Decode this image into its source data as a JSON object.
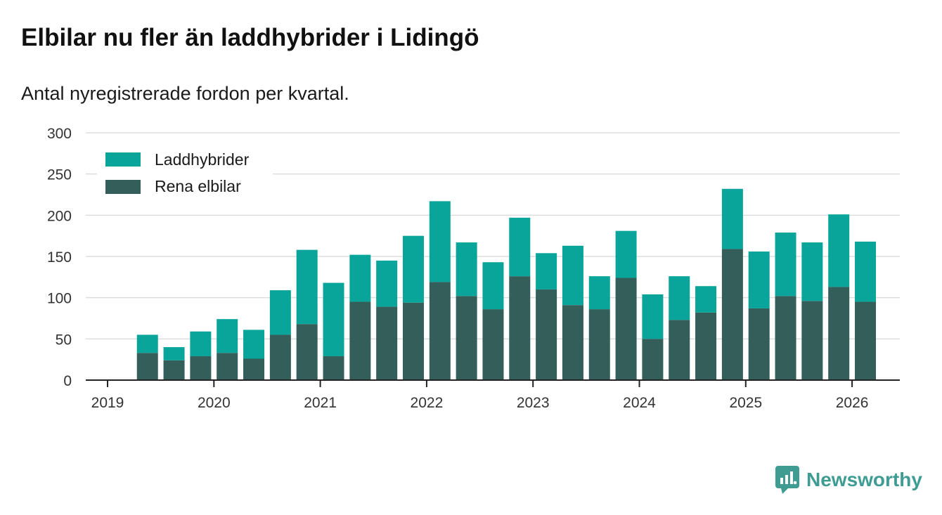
{
  "title": "Elbilar nu fler än laddhybrider i Lidingö",
  "subtitle": "Antal nyregistrerade fordon per kvartal.",
  "brand": {
    "name": "Newsworthy"
  },
  "colors": {
    "hybrid": "#0aa59a",
    "electric": "#335e5a",
    "grid": "#dddddd",
    "axis": "#222222",
    "brand": "#3f9c93"
  },
  "chart_data": {
    "type": "bar",
    "stacked": true,
    "title": "Elbilar nu fler än laddhybrider i Lidingö",
    "subtitle": "Antal nyregistrerade fordon per kvartal.",
    "xlabel": "",
    "ylabel": "",
    "ylim": [
      0,
      300
    ],
    "yticks": [
      0,
      50,
      100,
      150,
      200,
      250,
      300
    ],
    "xticks": [
      "2019",
      "2020",
      "2021",
      "2022",
      "2023",
      "2024",
      "2025",
      "2026"
    ],
    "legend_position": "top-left",
    "grid": true,
    "categories": [
      "2019 Q2",
      "2019 Q3",
      "2019 Q4",
      "2020 Q1",
      "2020 Q2",
      "2020 Q3",
      "2020 Q4",
      "2021 Q1",
      "2021 Q2",
      "2021 Q3",
      "2021 Q4",
      "2022 Q1",
      "2022 Q2",
      "2022 Q3",
      "2022 Q4",
      "2023 Q1",
      "2023 Q2",
      "2023 Q3",
      "2023 Q4",
      "2024 Q1",
      "2024 Q2",
      "2024 Q3",
      "2024 Q4",
      "2025 Q1",
      "2025 Q2",
      "2025 Q3",
      "2025 Q4",
      "2026 Q1"
    ],
    "series": [
      {
        "name": "Rena elbilar",
        "values": [
          33,
          24,
          29,
          33,
          26,
          55,
          68,
          29,
          95,
          89,
          94,
          119,
          102,
          86,
          126,
          110,
          91,
          86,
          124,
          50,
          73,
          82,
          159,
          87,
          102,
          96,
          113,
          95
        ]
      },
      {
        "name": "Laddhybrider",
        "values": [
          22,
          16,
          30,
          41,
          35,
          54,
          90,
          89,
          57,
          56,
          81,
          98,
          65,
          57,
          71,
          44,
          72,
          40,
          57,
          54,
          53,
          32,
          73,
          69,
          77,
          71,
          88,
          73
        ]
      }
    ]
  }
}
